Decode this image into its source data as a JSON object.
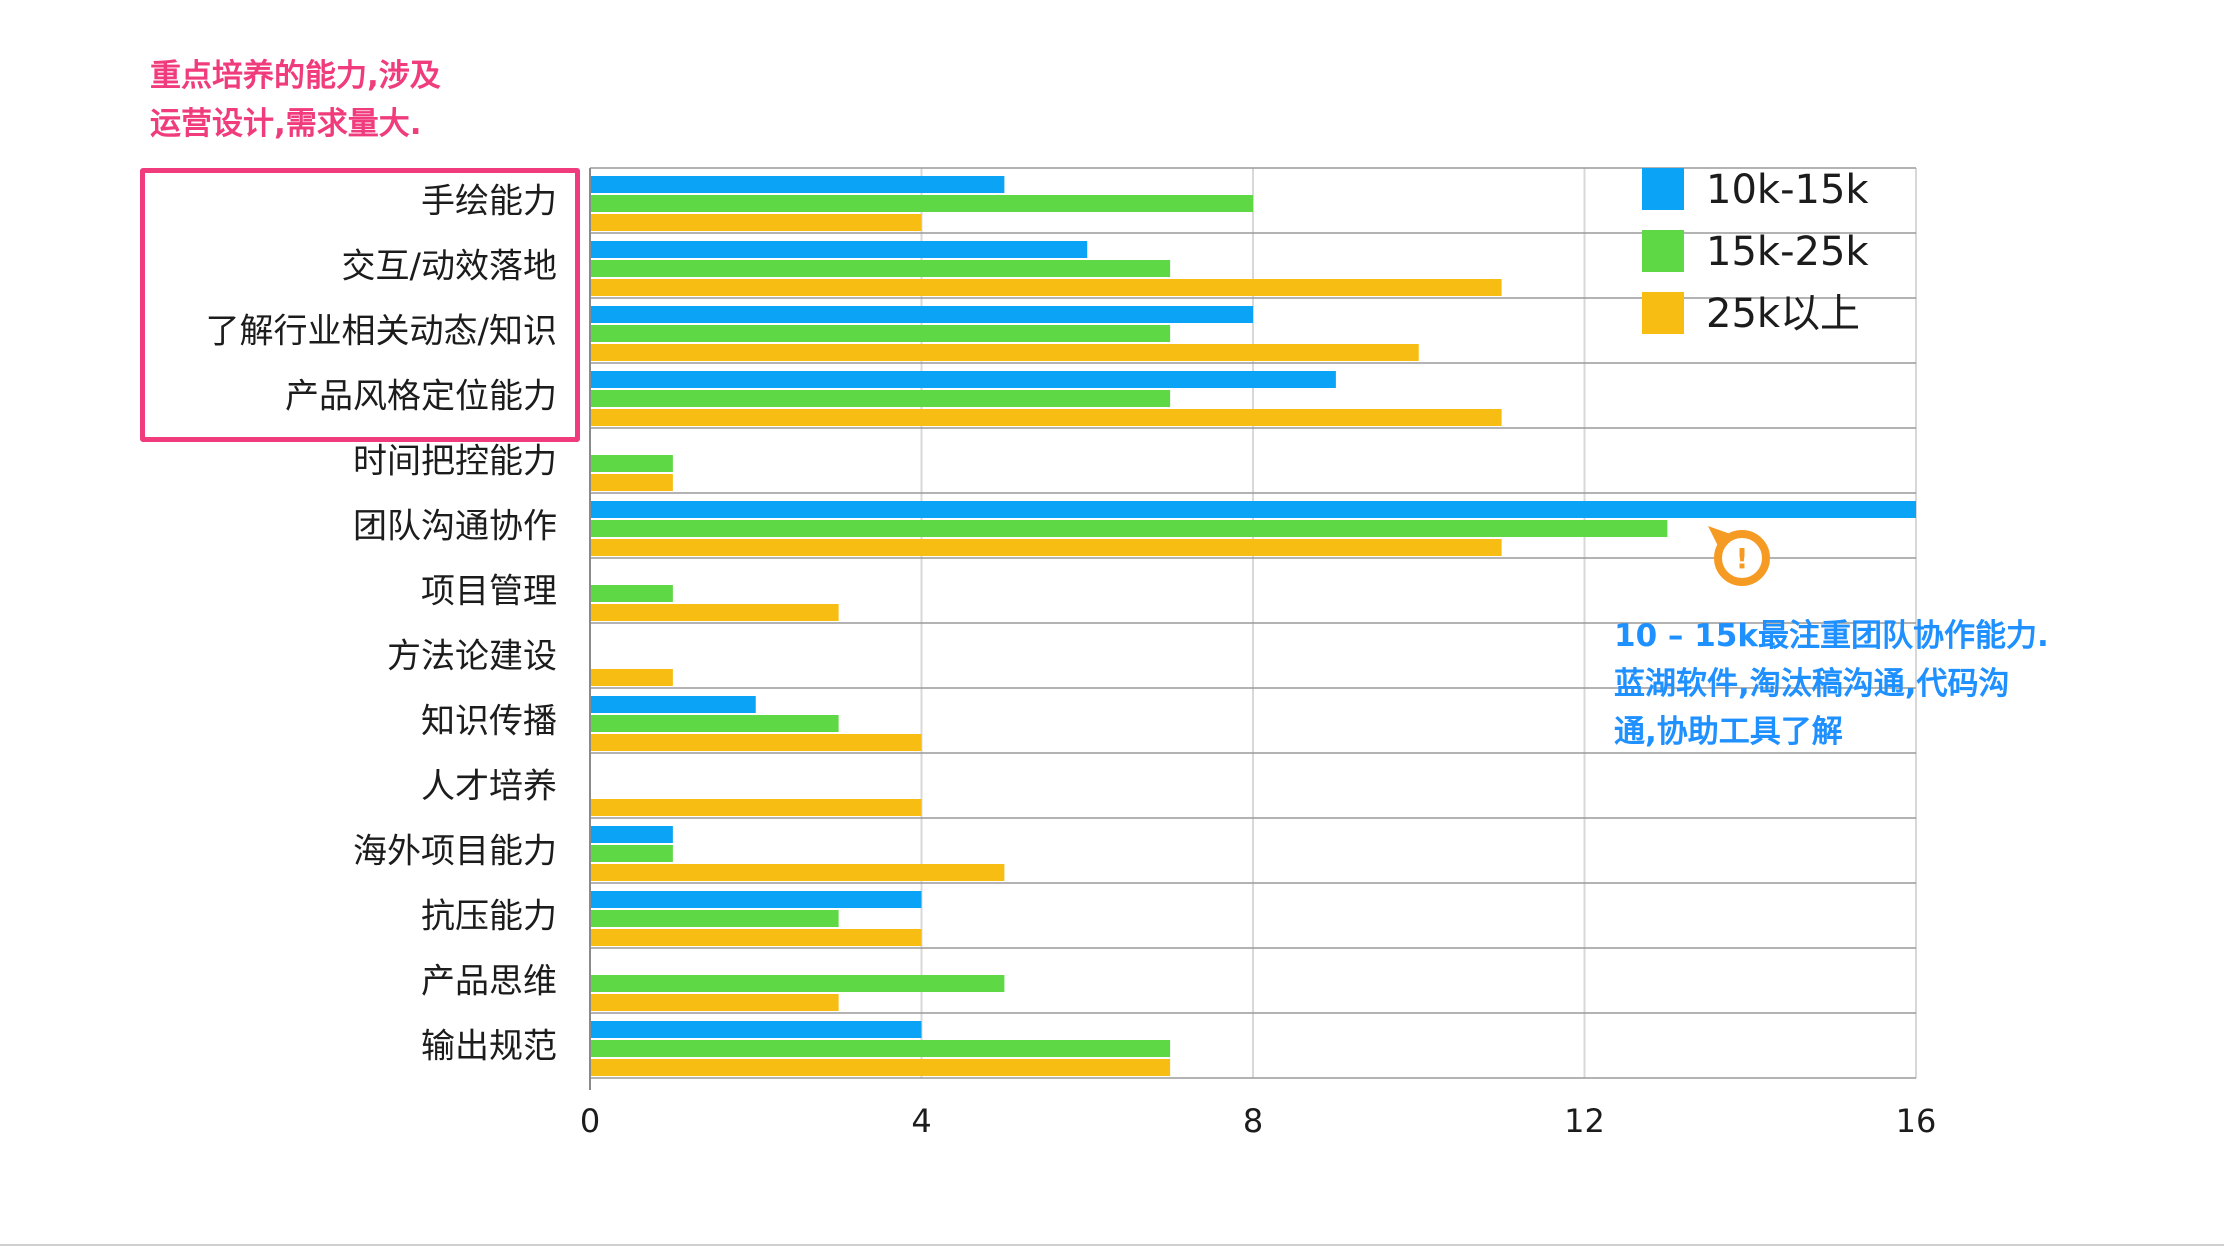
{
  "colors": {
    "series_blue": "#0aa3f5",
    "series_green": "#5fd845",
    "series_yellow": "#f8bd12",
    "highlight_pink": "#f03c7c",
    "note_blue": "#1e90ff",
    "marker_orange": "#f59a23"
  },
  "annotations": {
    "top_note": [
      "重点培养的能力,涉及",
      "运营设计,需求量大."
    ],
    "right_note": [
      "10 – 15k最注重团队协作能力.",
      "蓝湖软件,淘汰稿沟通,代码沟",
      "通,协助工具了解"
    ],
    "marker_icon": "exclamation-icon",
    "marker_symbol": "!"
  },
  "chart_data": {
    "type": "bar",
    "orientation": "horizontal",
    "categories": [
      "手绘能力",
      "交互/动效落地",
      "了解行业相关动态/知识",
      "产品风格定位能力",
      "时间把控能力",
      "团队沟通协作",
      "项目管理",
      "方法论建设",
      "知识传播",
      "人才培养",
      "海外项目能力",
      "抗压能力",
      "产品思维",
      "输出规范"
    ],
    "series": [
      {
        "name": "10k-15k",
        "values": [
          5,
          6,
          8,
          9,
          0,
          16,
          0,
          0,
          2,
          0,
          1,
          4,
          0,
          4
        ]
      },
      {
        "name": "15k-25k",
        "values": [
          8,
          7,
          7,
          7,
          1,
          13,
          1,
          0,
          3,
          0,
          1,
          3,
          5,
          7
        ]
      },
      {
        "name": "25k以上",
        "values": [
          4,
          11,
          10,
          11,
          1,
          11,
          3,
          1,
          4,
          4,
          5,
          4,
          3,
          7
        ]
      }
    ],
    "xlim": [
      0,
      16
    ],
    "xticks": [
      0,
      4,
      8,
      12,
      16
    ],
    "tick_labels": [
      "0",
      "4",
      "8",
      "12",
      "16"
    ],
    "grid": true,
    "legend_position": "top-right"
  }
}
